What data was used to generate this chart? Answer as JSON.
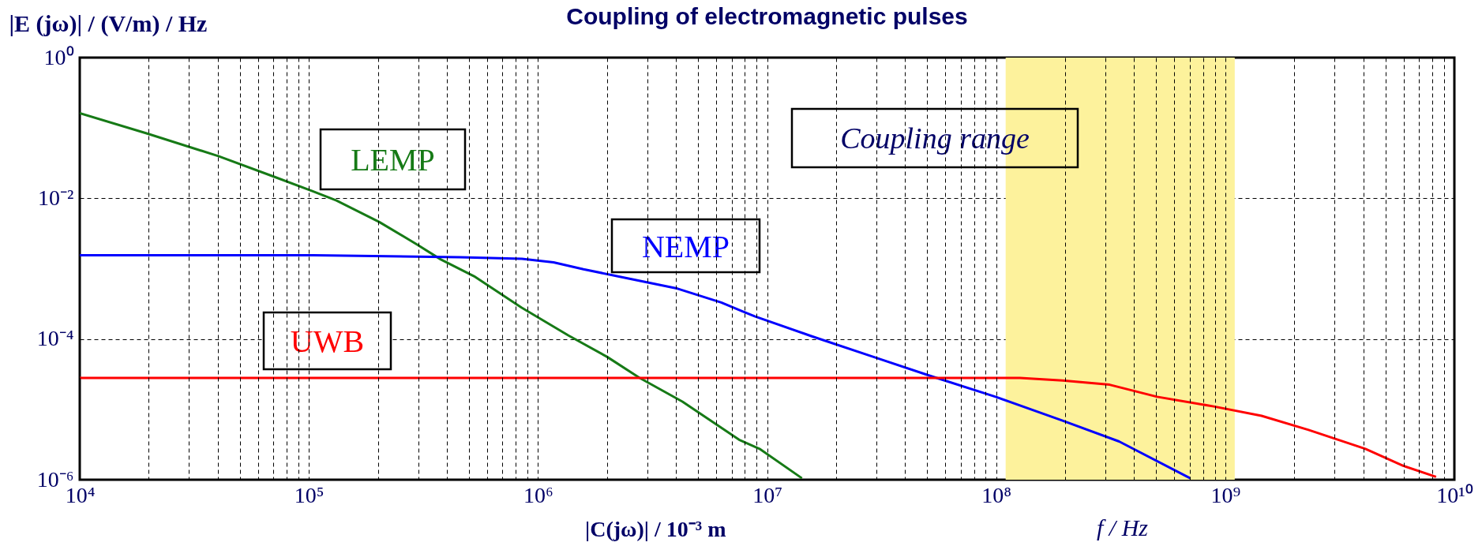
{
  "chart_data": {
    "type": "line",
    "title": "Coupling of electromagnetic pulses",
    "ylabel": "|E (jω)| / (V/m) / Hz",
    "xlabel": "f / Hz",
    "log": "xy",
    "grid": true,
    "legend": false,
    "xlim": [
      10000,
      10000000000
    ],
    "ylim": [
      1e-06,
      1
    ],
    "xticks": [
      {
        "value": 10000,
        "label": "10⁴"
      },
      {
        "value": 20000,
        "label": null
      },
      {
        "value": 30000,
        "label": null
      },
      {
        "value": 40000,
        "label": null
      },
      {
        "value": 50000,
        "label": null
      },
      {
        "value": 60000,
        "label": null
      },
      {
        "value": 70000,
        "label": null
      },
      {
        "value": 80000,
        "label": null
      },
      {
        "value": 90000,
        "label": null
      },
      {
        "value": 100000,
        "label": "10⁵"
      },
      {
        "value": 200000,
        "label": null
      },
      {
        "value": 300000,
        "label": null
      },
      {
        "value": 400000,
        "label": null
      },
      {
        "value": 500000,
        "label": null
      },
      {
        "value": 600000,
        "label": null
      },
      {
        "value": 700000,
        "label": null
      },
      {
        "value": 800000,
        "label": null
      },
      {
        "value": 900000,
        "label": null
      },
      {
        "value": 1000000,
        "label": "10⁶"
      },
      {
        "value": 2000000,
        "label": null
      },
      {
        "value": 3000000,
        "label": null
      },
      {
        "value": 4000000,
        "label": null
      },
      {
        "value": 5000000,
        "label": null
      },
      {
        "value": 6000000,
        "label": null
      },
      {
        "value": 7000000,
        "label": null
      },
      {
        "value": 8000000,
        "label": null
      },
      {
        "value": 9000000,
        "label": null
      },
      {
        "value": 10000000,
        "label": "10⁷"
      },
      {
        "value": 20000000,
        "label": null
      },
      {
        "value": 30000000,
        "label": null
      },
      {
        "value": 40000000,
        "label": null
      },
      {
        "value": 50000000,
        "label": null
      },
      {
        "value": 60000000,
        "label": null
      },
      {
        "value": 70000000,
        "label": null
      },
      {
        "value": 80000000,
        "label": null
      },
      {
        "value": 90000000,
        "label": null
      },
      {
        "value": 100000000,
        "label": "10⁸"
      },
      {
        "value": 200000000,
        "label": null
      },
      {
        "value": 300000000,
        "label": null
      },
      {
        "value": 400000000,
        "label": null
      },
      {
        "value": 500000000,
        "label": null
      },
      {
        "value": 600000000,
        "label": null
      },
      {
        "value": 700000000,
        "label": null
      },
      {
        "value": 800000000,
        "label": null
      },
      {
        "value": 900000000,
        "label": null
      },
      {
        "value": 1000000000,
        "label": "10⁹"
      },
      {
        "value": 2000000000,
        "label": null
      },
      {
        "value": 3000000000,
        "label": null
      },
      {
        "value": 4000000000,
        "label": null
      },
      {
        "value": 5000000000,
        "label": null
      },
      {
        "value": 6000000000,
        "label": null
      },
      {
        "value": 7000000000,
        "label": null
      },
      {
        "value": 8000000000,
        "label": null
      },
      {
        "value": 9000000000,
        "label": null
      },
      {
        "value": 10000000000,
        "label": "10¹⁰"
      }
    ],
    "yticks": [
      {
        "value": 1e-06,
        "label": "10⁻⁶"
      },
      {
        "value": 0.0001,
        "label": "10⁻⁴"
      },
      {
        "value": 0.01,
        "label": "10⁻²"
      },
      {
        "value": 1,
        "label": "10⁰"
      }
    ],
    "bands": [
      {
        "axis": "x",
        "from": 110000000,
        "to": 1100000000,
        "label": "Coupling range",
        "color": "#fdf29c"
      }
    ],
    "annotations": [
      "|C(jω)| / 10⁻³ m"
    ],
    "series": [
      {
        "name": "LEMP",
        "color": "#167a16",
        "x": [
          10000,
          19700,
          40300,
          71300,
          104000,
          132000,
          203000,
          297000,
          377000,
          526000,
          847000,
          1360000,
          2000000,
          2780000,
          4270000,
          7550000,
          9270000,
          14200000
        ],
        "values": [
          0.162,
          0.0832,
          0.0398,
          0.02,
          0.0126,
          0.0093,
          0.0046,
          0.0022,
          0.00135,
          0.00078,
          0.00028,
          0.000112,
          5.6e-05,
          2.8e-05,
          1.29e-05,
          3.7e-06,
          2.75e-06,
          1.05e-06
        ]
      },
      {
        "name": "NEMP",
        "color": "#0000ff",
        "x": [
          10000,
          105000,
          457000,
          851000,
          1170000,
          1580000,
          2510000,
          4070000,
          6310000,
          7850000,
          8830000,
          15600000,
          29000000,
          51400000,
          100000000,
          195000000,
          344000000,
          703000000
        ],
        "values": [
          0.00155,
          0.00155,
          0.00145,
          0.00138,
          0.00123,
          0.00098,
          0.00072,
          0.00052,
          0.00033,
          0.000245,
          0.00021,
          0.00011,
          5.6e-05,
          3e-05,
          1.5e-05,
          6.9e-06,
          3.5e-06,
          1.05e-06
        ]
      },
      {
        "name": "UWB",
        "color": "#ff0000",
        "x": [
          10000,
          127000000,
          195000000,
          313000000,
          504000000,
          891000000,
          1440000000,
          2310000000,
          4090000000,
          5980000000,
          8320000000
        ],
        "values": [
          2.8e-05,
          2.8e-05,
          2.57e-05,
          2.24e-05,
          1.51e-05,
          1.1e-05,
          8.1e-06,
          5.1e-06,
          2.75e-06,
          1.58e-06,
          1.1e-06
        ]
      }
    ]
  }
}
